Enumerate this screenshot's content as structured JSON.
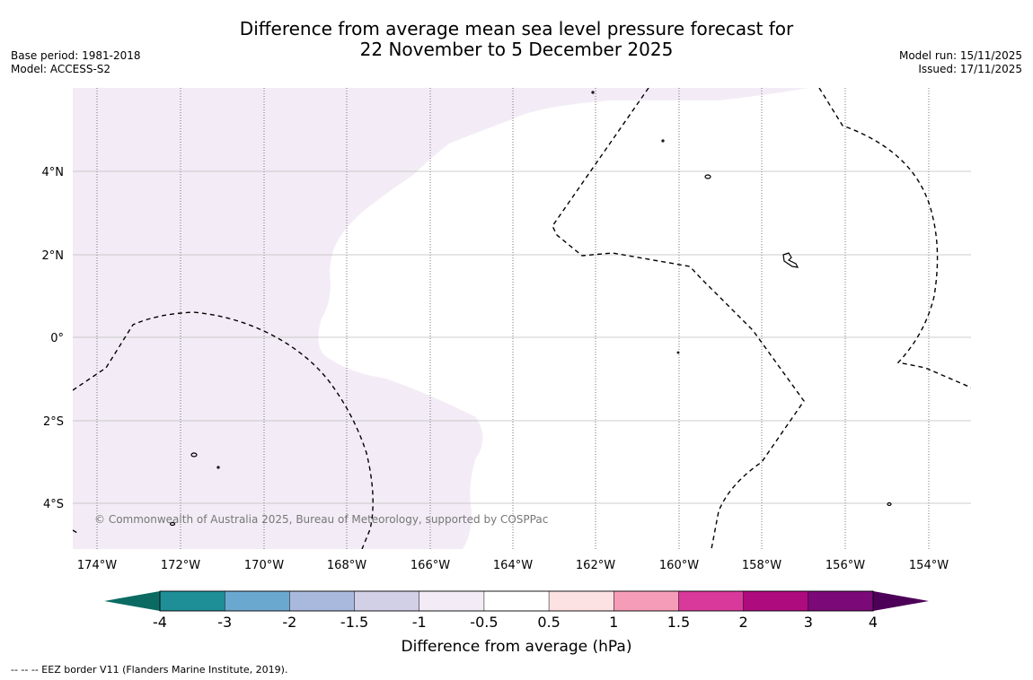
{
  "header": {
    "title_line1": "Difference from average mean sea level pressure forecast for",
    "title_line2": "22 November to 5 December 2025",
    "base_period": "Base period: 1981-2018",
    "model": "Model: ACCESS-S2",
    "model_run": "Model run: 15/11/2025",
    "issued": "Issued: 17/11/2025"
  },
  "map": {
    "lon_labels": [
      "174°W",
      "172°W",
      "170°W",
      "168°W",
      "166°W",
      "164°W",
      "162°W",
      "160°W",
      "158°W",
      "156°W",
      "154°W"
    ],
    "lat_labels": [
      "4°N",
      "2°N",
      "0°",
      "2°S",
      "4°S"
    ],
    "copyright": "© Commonwealth of Australia 2025, Bureau of Meteorology, supported by COSPPac"
  },
  "colorbar": {
    "title": "Difference from average (hPa)",
    "tick_labels": [
      "-4",
      "-3",
      "-2",
      "-1.5",
      "-1",
      "-0.5",
      "0.5",
      "1",
      "1.5",
      "2",
      "3",
      "4"
    ],
    "colors": {
      "below_min": "#0b6b63",
      "bins": [
        "#1f8f97",
        "#6aa8d0",
        "#a9b9dd",
        "#d1d0e6",
        "#f3ecf6",
        "#ffffff",
        "#fde2e4",
        "#f59db8",
        "#d8399a",
        "#ad0b7e",
        "#7b0a78"
      ],
      "above_max": "#4d0057"
    }
  },
  "footnote": "--  --  -- EEZ border V11 (Flanders Marine Institute, 2019)."
}
